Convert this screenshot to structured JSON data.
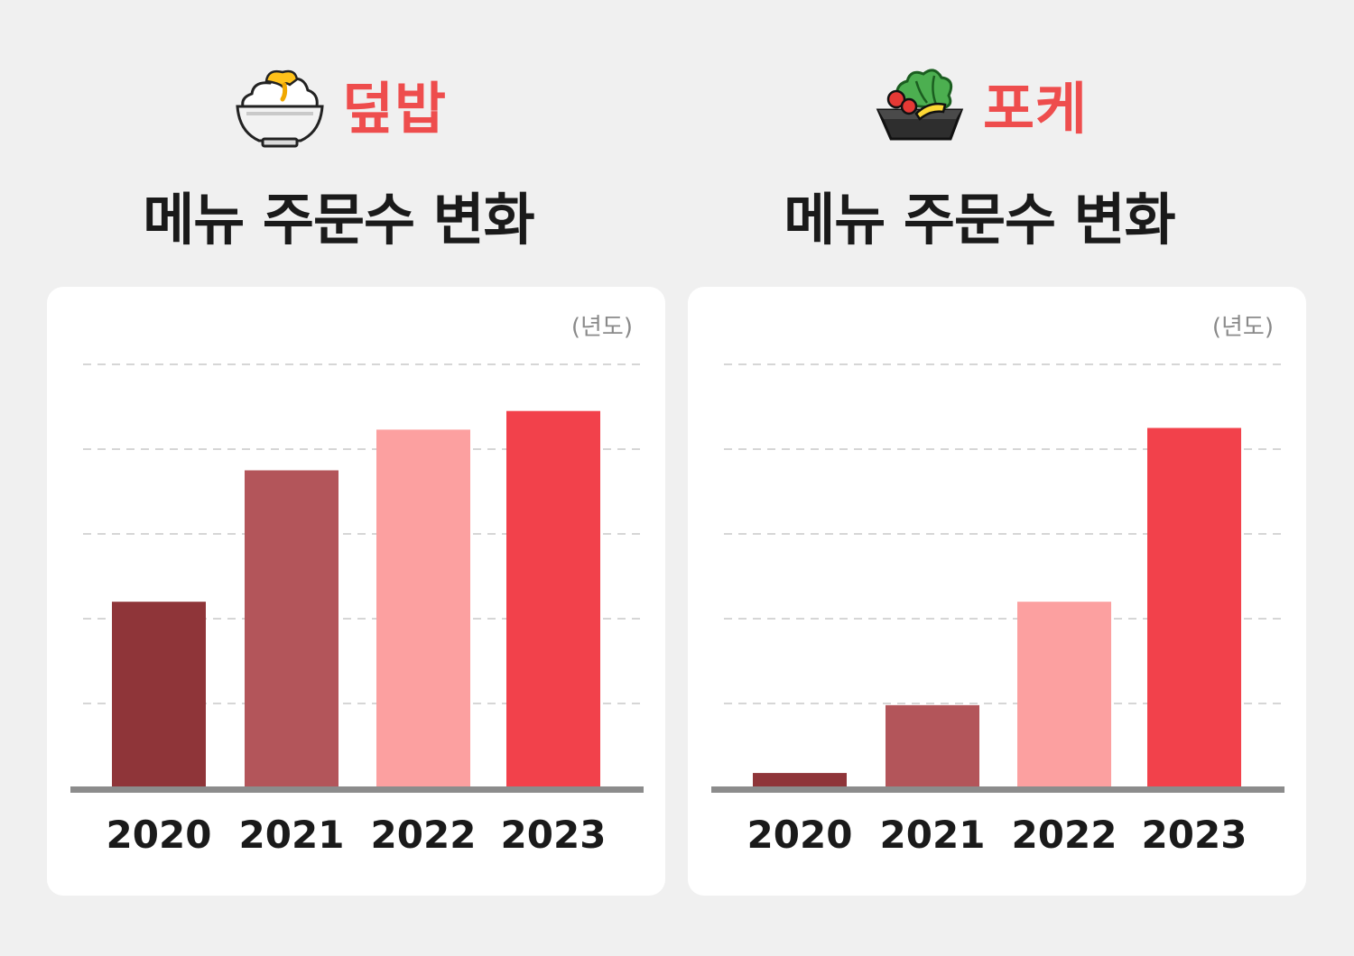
{
  "panels": [
    {
      "menu": "덮밥",
      "subtitle": "메뉴 주문수 변화",
      "icon": "rice-bowl-icon",
      "unit_label": "(년도)"
    },
    {
      "menu": "포케",
      "subtitle": "메뉴 주문수 변화",
      "icon": "salad-bowl-icon",
      "unit_label": "(년도)"
    }
  ],
  "colors": {
    "accent": "#ee4d4d",
    "bar_2020": "#8f3539",
    "bar_2021": "#b3555a",
    "bar_2022": "#fca0a0",
    "bar_2023": "#f2414b",
    "baseline": "#8c8c8c",
    "grid": "#d6d6d6"
  },
  "chart_data": [
    {
      "type": "bar",
      "categories": [
        "2020",
        "2021",
        "2022",
        "2023"
      ],
      "values": [
        2.2,
        3.75,
        4.23,
        4.45
      ],
      "ylim": [
        0,
        5
      ],
      "grid": true,
      "grid_lines": 5,
      "title": "",
      "xlabel": "",
      "ylabel": ""
    },
    {
      "type": "bar",
      "categories": [
        "2020",
        "2021",
        "2022",
        "2023"
      ],
      "values": [
        0.18,
        0.98,
        2.2,
        4.25
      ],
      "ylim": [
        0,
        5
      ],
      "grid": true,
      "grid_lines": 5,
      "title": "",
      "xlabel": "",
      "ylabel": ""
    }
  ]
}
